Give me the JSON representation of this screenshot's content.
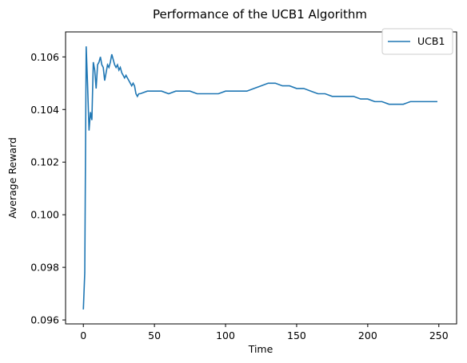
{
  "chart_data": {
    "type": "line",
    "title": "Performance of the UCB1 Algorithm",
    "xlabel": "Time",
    "ylabel": "Average Reward",
    "xlim": [
      -12.5,
      262.5
    ],
    "ylim": [
      0.09585,
      0.10695
    ],
    "xticks": [
      0,
      50,
      100,
      150,
      200,
      250
    ],
    "yticks": [
      0.096,
      0.098,
      0.1,
      0.102,
      0.104,
      0.106
    ],
    "ytick_labels": [
      "0.096",
      "0.098",
      "0.100",
      "0.102",
      "0.104",
      "0.106"
    ],
    "grid": false,
    "legend_position": "top-right",
    "series": [
      {
        "name": "UCB1",
        "color": "#1f77b4",
        "points": [
          [
            0,
            0.0964
          ],
          [
            1,
            0.0978
          ],
          [
            2,
            0.1064
          ],
          [
            3,
            0.1049
          ],
          [
            4,
            0.1032
          ],
          [
            5,
            0.1039
          ],
          [
            6,
            0.1036
          ],
          [
            7,
            0.1058
          ],
          [
            8,
            0.1055
          ],
          [
            9,
            0.1048
          ],
          [
            10,
            0.1057
          ],
          [
            11,
            0.1058
          ],
          [
            12,
            0.106
          ],
          [
            13,
            0.1057
          ],
          [
            14,
            0.1056
          ],
          [
            15,
            0.1051
          ],
          [
            16,
            0.1054
          ],
          [
            17,
            0.1057
          ],
          [
            18,
            0.1056
          ],
          [
            19,
            0.1058
          ],
          [
            20,
            0.1061
          ],
          [
            21,
            0.1059
          ],
          [
            22,
            0.1057
          ],
          [
            23,
            0.1056
          ],
          [
            24,
            0.1057
          ],
          [
            25,
            0.1055
          ],
          [
            26,
            0.1056
          ],
          [
            27,
            0.1054
          ],
          [
            28,
            0.1053
          ],
          [
            29,
            0.1052
          ],
          [
            30,
            0.1053
          ],
          [
            31,
            0.1052
          ],
          [
            32,
            0.1051
          ],
          [
            33,
            0.105
          ],
          [
            34,
            0.1049
          ],
          [
            35,
            0.105
          ],
          [
            36,
            0.1049
          ],
          [
            37,
            0.1046
          ],
          [
            38,
            0.1045
          ],
          [
            39,
            0.1046
          ],
          [
            40,
            0.1046
          ],
          [
            45,
            0.1047
          ],
          [
            50,
            0.1047
          ],
          [
            55,
            0.1047
          ],
          [
            60,
            0.1046
          ],
          [
            65,
            0.1047
          ],
          [
            70,
            0.1047
          ],
          [
            75,
            0.1047
          ],
          [
            80,
            0.1046
          ],
          [
            85,
            0.1046
          ],
          [
            90,
            0.1046
          ],
          [
            95,
            0.1046
          ],
          [
            100,
            0.1047
          ],
          [
            105,
            0.1047
          ],
          [
            110,
            0.1047
          ],
          [
            115,
            0.1047
          ],
          [
            120,
            0.1048
          ],
          [
            125,
            0.1049
          ],
          [
            130,
            0.105
          ],
          [
            135,
            0.105
          ],
          [
            140,
            0.1049
          ],
          [
            145,
            0.1049
          ],
          [
            150,
            0.1048
          ],
          [
            155,
            0.1048
          ],
          [
            160,
            0.1047
          ],
          [
            165,
            0.1046
          ],
          [
            170,
            0.1046
          ],
          [
            175,
            0.1045
          ],
          [
            180,
            0.1045
          ],
          [
            185,
            0.1045
          ],
          [
            190,
            0.1045
          ],
          [
            195,
            0.1044
          ],
          [
            200,
            0.1044
          ],
          [
            205,
            0.1043
          ],
          [
            210,
            0.1043
          ],
          [
            215,
            0.1042
          ],
          [
            220,
            0.1042
          ],
          [
            225,
            0.1042
          ],
          [
            230,
            0.1043
          ],
          [
            235,
            0.1043
          ],
          [
            240,
            0.1043
          ],
          [
            245,
            0.1043
          ],
          [
            249,
            0.1043
          ]
        ]
      }
    ]
  }
}
